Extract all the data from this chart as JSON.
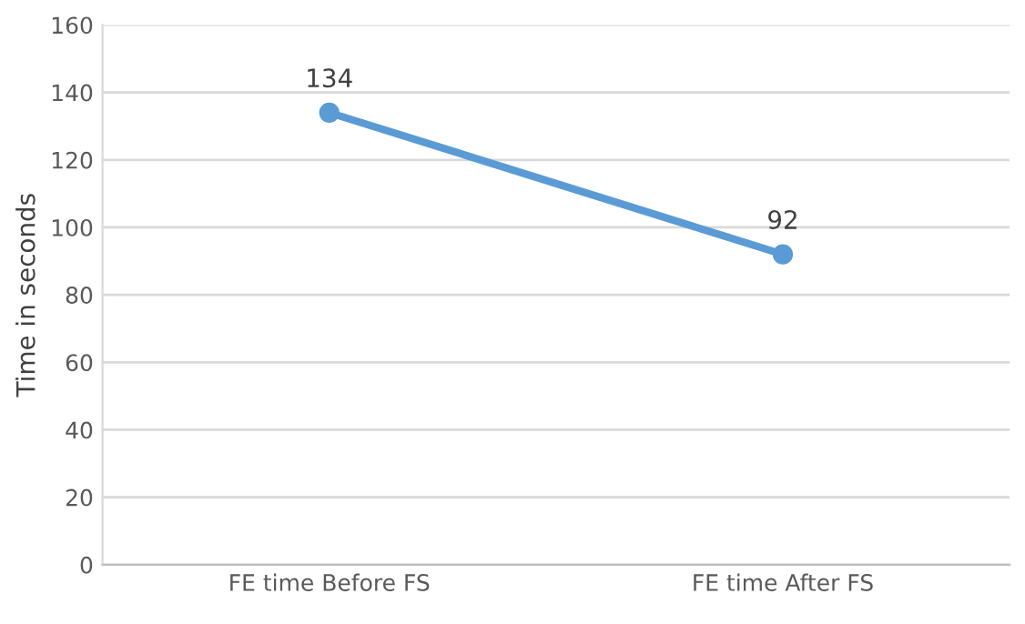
{
  "chart_data": {
    "type": "line",
    "ylabel": "Time in seconds",
    "categories": [
      "FE time Before FS",
      "FE time After FS"
    ],
    "series": [
      {
        "color": "#5b9bd5",
        "values": [
          134,
          92
        ]
      }
    ],
    "ylim": [
      0,
      160
    ],
    "yticks": [
      0,
      20,
      40,
      60,
      80,
      100,
      120,
      140,
      160
    ],
    "grid": "y",
    "data_labels": true,
    "marker": "circle",
    "line_style": "solid"
  }
}
